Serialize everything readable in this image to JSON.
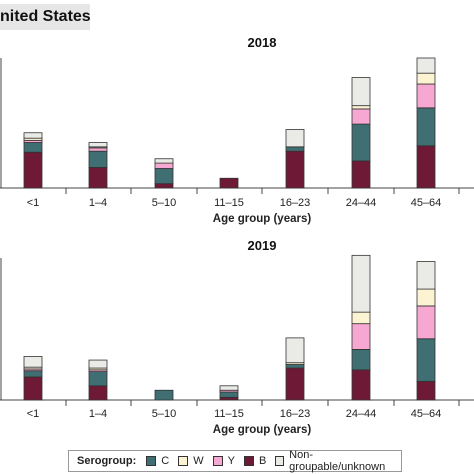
{
  "panel_title": "nited States",
  "legend": {
    "title": "Serogroup:",
    "items": [
      {
        "key": "C",
        "label": "C",
        "color": "#3f6e73"
      },
      {
        "key": "W",
        "label": "W",
        "color": "#fbf3d2"
      },
      {
        "key": "Y",
        "label": "Y",
        "color": "#f7a8d2"
      },
      {
        "key": "B",
        "label": "B",
        "color": "#6e1a37"
      },
      {
        "key": "NG",
        "label": "Non-groupable/unknown",
        "color": "#eaeae6"
      }
    ]
  },
  "chart_data": [
    {
      "type": "bar",
      "stacked": true,
      "title": "2018",
      "xlabel": "Age group (years)",
      "ylabel": "",
      "categories": [
        "<1",
        "1–4",
        "5–10",
        "11–15",
        "16–23",
        "24–44",
        "45–64"
      ],
      "ylim": [
        0,
        120
      ],
      "series": [
        {
          "name": "B",
          "values": [
            33,
            19,
            4,
            9,
            34,
            25,
            39
          ]
        },
        {
          "name": "C",
          "values": [
            9,
            15,
            14,
            0,
            4,
            34,
            35
          ]
        },
        {
          "name": "Y",
          "values": [
            2,
            3,
            5,
            0,
            0,
            14,
            22
          ]
        },
        {
          "name": "W",
          "values": [
            2,
            1,
            0,
            0,
            0,
            3,
            10
          ]
        },
        {
          "name": "Non-groupable/unknown",
          "values": [
            5,
            4,
            4,
            0,
            16,
            26,
            14
          ]
        }
      ]
    },
    {
      "type": "bar",
      "stacked": true,
      "title": "2019",
      "xlabel": "Age group (years)",
      "ylabel": "",
      "categories": [
        "<1",
        "1–4",
        "5–10",
        "11–15",
        "16–23",
        "24–44",
        "45–64"
      ],
      "ylim": [
        0,
        160
      ],
      "series": [
        {
          "name": "B",
          "values": [
            26,
            16,
            0,
            3,
            36,
            34,
            21
          ]
        },
        {
          "name": "C",
          "values": [
            7,
            16,
            11,
            6,
            4,
            23,
            48
          ]
        },
        {
          "name": "Y",
          "values": [
            2,
            2,
            0,
            2,
            0,
            29,
            37
          ]
        },
        {
          "name": "W",
          "values": [
            2,
            2,
            0,
            0,
            2,
            13,
            19
          ]
        },
        {
          "name": "Non-groupable/unknown",
          "values": [
            12,
            9,
            0,
            5,
            28,
            64,
            31
          ]
        }
      ]
    }
  ]
}
